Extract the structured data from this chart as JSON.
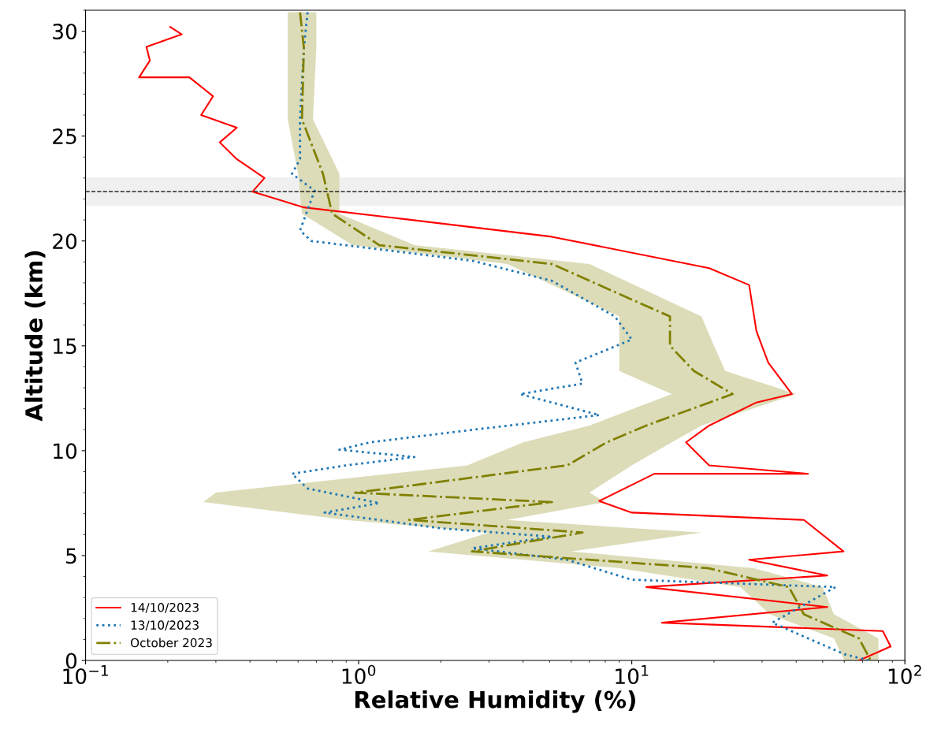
{
  "chart_data": {
    "type": "line",
    "xlabel": "Relative Humidity (%)",
    "ylabel": "Altitude (km)",
    "log": "x",
    "xlim": [
      0.1,
      100
    ],
    "ylim": [
      0,
      31
    ],
    "xticks": [
      {
        "value": 0.1,
        "label": "10$^{−1}$"
      },
      {
        "value": 1,
        "label": "10$^{0}$"
      },
      {
        "value": 10,
        "label": "10$^{1}$"
      },
      {
        "value": 100,
        "label": "10$^{2}$"
      }
    ],
    "yticks": [
      0,
      5,
      10,
      15,
      20,
      25,
      30
    ],
    "grid": false,
    "legend": "bottom left",
    "marker": "none",
    "ref_lines": [
      {
        "axis": "y",
        "value": 22.35,
        "color": "#000000",
        "line_style": "dashed"
      }
    ],
    "bands": [
      {
        "axis": "y",
        "from": 21.7,
        "to": 23.0,
        "color": "#f0f0f0"
      }
    ],
    "series": [
      {
        "name": "14/10/2023",
        "color": "#ff0000",
        "line_style": "solid",
        "x": [
          0.204,
          0.225,
          0.167,
          0.172,
          0.157,
          0.24,
          0.293,
          0.265,
          0.358,
          0.31,
          0.358,
          0.452,
          0.409,
          0.63,
          1.35,
          5.1,
          19.2,
          26.9,
          28.6,
          31.6,
          38.6,
          28.6,
          19.2,
          15.8,
          19.2,
          44.2,
          12.1,
          7.6,
          10,
          42.7,
          59.6,
          26.9,
          52,
          11.3,
          52,
          12.9,
          83,
          88.7,
          67.9
        ],
        "values": [
          30.2,
          29.85,
          29.25,
          28.6,
          27.8,
          27.8,
          26.9,
          26.0,
          25.4,
          24.7,
          23.9,
          23.0,
          22.35,
          21.6,
          21.1,
          20.2,
          18.7,
          17.9,
          15.7,
          14.2,
          12.7,
          12.3,
          11.2,
          10.4,
          9.3,
          8.9,
          8.9,
          7.6,
          7.05,
          6.7,
          5.2,
          4.8,
          4.05,
          3.5,
          2.55,
          1.8,
          1.4,
          0.67,
          0
        ]
      },
      {
        "name": "13/10/2023",
        "color": "#1f77b4",
        "line_style": "dotted",
        "x": [
          0.65,
          0.63,
          0.61,
          0.61,
          0.57,
          0.69,
          0.61,
          0.67,
          2.62,
          5.1,
          8.67,
          10,
          6.22,
          6.6,
          3.9,
          7.6,
          2.62,
          1.1,
          0.85,
          1.6,
          0.9,
          0.57,
          0.65,
          1.19,
          0.75,
          2.0,
          5.1,
          2.6,
          5.8,
          10,
          55.7,
          32.7,
          60,
          74
        ],
        "values": [
          30.9,
          29.2,
          25.8,
          23.9,
          23.2,
          22.4,
          20.5,
          20.0,
          19.05,
          18.1,
          16.4,
          15.3,
          14.2,
          13.2,
          12.7,
          11.7,
          11.0,
          10.4,
          10.05,
          9.7,
          9.3,
          8.9,
          8.2,
          7.5,
          7.05,
          6.3,
          5.9,
          5.35,
          4.8,
          3.85,
          3.5,
          1.8,
          0.3,
          0
        ]
      },
      {
        "name": "October 2023",
        "color": "#808000",
        "line_style": "dashdot",
        "x": [
          0.61,
          0.63,
          0.62,
          0.74,
          0.8,
          1.19,
          5.1,
          13.8,
          13.8,
          16.9,
          23.4,
          11.3,
          8.1,
          5.8,
          0.97,
          5.1,
          1.53,
          6.6,
          2.6,
          19,
          37.6,
          42.7,
          67.9,
          75
        ],
        "values": [
          30.9,
          29.2,
          25.8,
          23.2,
          21.3,
          19.8,
          18.9,
          16.4,
          15.0,
          13.8,
          12.7,
          11.2,
          10.4,
          9.3,
          8.0,
          7.55,
          6.7,
          6.1,
          5.2,
          4.4,
          3.5,
          2.2,
          1.05,
          0
        ]
      },
      {
        "type": "area",
        "color": "#dcdcb9",
        "x": [
          0.55,
          0.55,
          0.55,
          0.6,
          0.62,
          0.95,
          3.5,
          9,
          9,
          9,
          14,
          7,
          4,
          2.5,
          0.3,
          0.27,
          0.9,
          3,
          1.8,
          9,
          25,
          32,
          55,
          60,
          80,
          80,
          55,
          50,
          28,
          6,
          18,
          3.5,
          8,
          7,
          10,
          14,
          18,
          40,
          22,
          20,
          18,
          7,
          1.6,
          0.85,
          0.85,
          0.68,
          0.7,
          0.7
        ],
        "values": [
          30.9,
          29.2,
          25.8,
          23.2,
          21.3,
          19.8,
          18.9,
          16.4,
          15.0,
          13.8,
          12.7,
          11.2,
          10.4,
          9.3,
          8.0,
          7.55,
          6.7,
          6.1,
          5.2,
          4.4,
          3.5,
          2.2,
          1.05,
          0,
          0,
          1.05,
          2.2,
          3.5,
          4.4,
          5.2,
          6.1,
          6.7,
          7.55,
          8.0,
          9.3,
          10.4,
          11.2,
          12.7,
          13.8,
          15.0,
          16.4,
          18.9,
          19.8,
          21.3,
          23.2,
          25.8,
          29.2,
          30.9
        ]
      }
    ]
  }
}
